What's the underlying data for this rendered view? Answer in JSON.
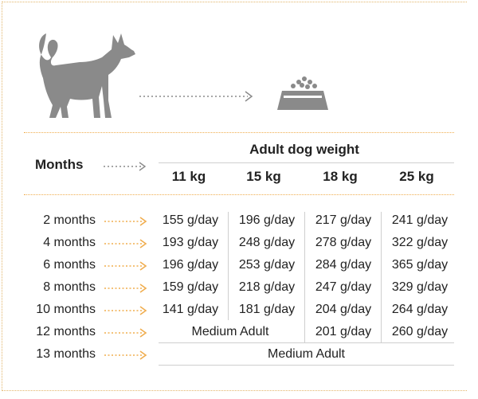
{
  "header": {
    "months_label": "Months",
    "adult_weight_label": "Adult dog weight"
  },
  "icons": [
    "dog-silhouette-icon",
    "food-bowl-icon",
    "dotted-arrow-icon"
  ],
  "colors": {
    "arrow": "#f0ad4e",
    "silhouette": "#8a8a8a",
    "border": "#e2b56a"
  },
  "weights": [
    "11 kg",
    "15 kg",
    "18 kg",
    "25 kg"
  ],
  "rows": [
    {
      "label": "2 months",
      "cells": [
        "155 g/day",
        "196 g/day",
        "217 g/day",
        "241 g/day"
      ]
    },
    {
      "label": "4 months",
      "cells": [
        "193 g/day",
        "248 g/day",
        "278 g/day",
        "322 g/day"
      ]
    },
    {
      "label": "6 months",
      "cells": [
        "196 g/day",
        "253 g/day",
        "284 g/day",
        "365 g/day"
      ]
    },
    {
      "label": "8 months",
      "cells": [
        "159 g/day",
        "218 g/day",
        "247 g/day",
        "329 g/day"
      ]
    },
    {
      "label": "10 months",
      "cells": [
        "141 g/day",
        "181 g/day",
        "204 g/day",
        "264 g/day"
      ]
    },
    {
      "label": "12 months",
      "merged_first_two": "Medium Adult",
      "cells": [
        "201 g/day",
        "260 g/day"
      ]
    },
    {
      "label": "13 months",
      "merged_all": "Medium Adult"
    }
  ]
}
